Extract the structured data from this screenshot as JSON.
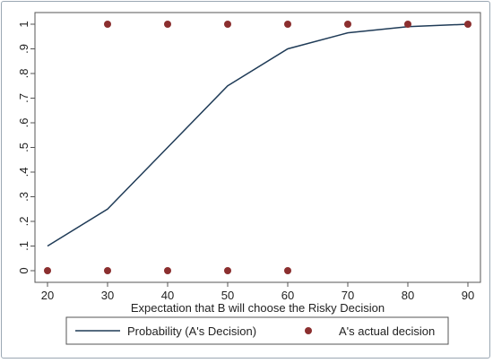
{
  "chart_data": {
    "type": "line",
    "xlabel": "Expectation that B will choose the Risky Decision",
    "ylabel": "",
    "xlim": [
      20,
      90
    ],
    "ylim": [
      0,
      1
    ],
    "x_ticks": [
      "20",
      "30",
      "40",
      "50",
      "60",
      "70",
      "80",
      "90"
    ],
    "y_ticks": [
      "0",
      ".1",
      ".2",
      ".3",
      ".4",
      ".5",
      ".6",
      ".7",
      ".8",
      ".9",
      "1"
    ],
    "legend_position": "bottom",
    "grid": false,
    "series": [
      {
        "name": "Probability (A's Decision)",
        "kind": "line",
        "color": "#1f3b57",
        "points": [
          [
            20,
            0.1
          ],
          [
            30,
            0.25
          ],
          [
            40,
            0.5
          ],
          [
            50,
            0.75
          ],
          [
            60,
            0.9
          ],
          [
            70,
            0.965
          ],
          [
            80,
            0.99
          ],
          [
            90,
            1.0
          ]
        ]
      },
      {
        "name": "A's actual decision",
        "kind": "scatter",
        "color": "#8b2f2f",
        "points": [
          [
            20,
            0
          ],
          [
            30,
            0
          ],
          [
            40,
            0
          ],
          [
            50,
            0
          ],
          [
            60,
            0
          ],
          [
            30,
            1
          ],
          [
            40,
            1
          ],
          [
            50,
            1
          ],
          [
            60,
            1
          ],
          [
            70,
            1
          ],
          [
            80,
            1
          ],
          [
            90,
            1
          ]
        ]
      }
    ]
  }
}
